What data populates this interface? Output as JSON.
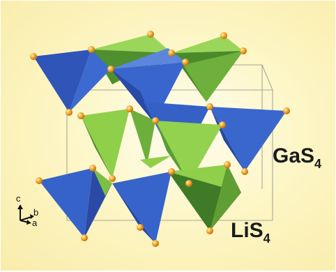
{
  "labels": {
    "gas4": {
      "main": "GaS",
      "sub": "4"
    },
    "lis4": {
      "main": "LiS",
      "sub": "4"
    }
  },
  "axes": {
    "c": "c",
    "b": "b",
    "a": "a"
  },
  "colors": {
    "ga_tetra_light": "#3b6fd4",
    "ga_tetra_dark": "#2543a0",
    "li_tetra_light": "#8fcf4a",
    "li_tetra_dark": "#3f7a26",
    "sulfur_atom": "#f0a020",
    "background": "#fbf1b8"
  }
}
